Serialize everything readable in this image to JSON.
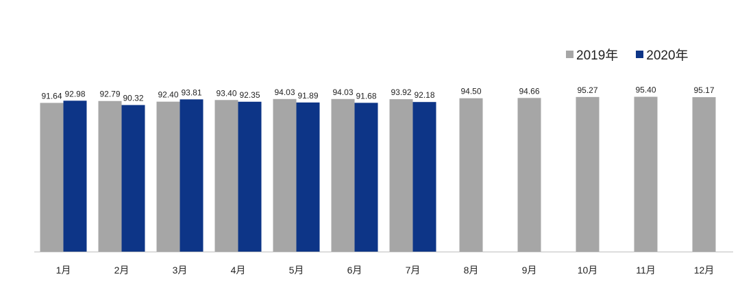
{
  "chart_data": {
    "type": "bar",
    "title": "",
    "xlabel": "",
    "ylabel": "",
    "ylim": [
      0,
      100
    ],
    "categories": [
      "1月",
      "2月",
      "3月",
      "4月",
      "5月",
      "6月",
      "7月",
      "8月",
      "9月",
      "10月",
      "11月",
      "12月"
    ],
    "series": [
      {
        "name": "2019年",
        "color": "#a6a6a6",
        "values": [
          91.64,
          92.79,
          92.4,
          93.4,
          94.03,
          94.03,
          93.92,
          94.5,
          94.66,
          95.27,
          95.4,
          95.17
        ],
        "labels": [
          "91.64",
          "92.79",
          "92.40",
          "93.40",
          "94.03",
          "94.03",
          "93.92",
          "94.50",
          "94.66",
          "95.27",
          "95.40",
          "95.17"
        ]
      },
      {
        "name": "2020年",
        "color": "#0d3587",
        "values": [
          92.98,
          90.32,
          93.81,
          92.35,
          91.89,
          91.68,
          92.18,
          null,
          null,
          null,
          null,
          null
        ],
        "labels": [
          "92.98",
          "90.32",
          "93.81",
          "92.35",
          "91.89",
          "91.68",
          "92.18",
          null,
          null,
          null,
          null,
          null
        ]
      }
    ],
    "grid": false,
    "legend": "top-right"
  }
}
